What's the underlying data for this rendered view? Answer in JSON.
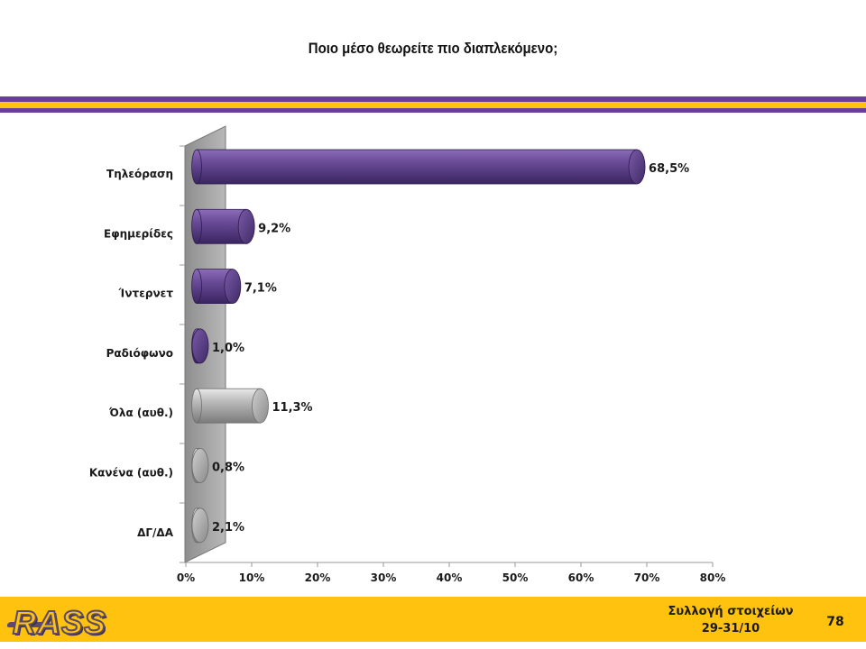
{
  "slide": {
    "title": "Ποιο μέσο θεωρείτε πιο διαπλεκόμενο;",
    "footer": {
      "logo_text": "RASS",
      "info_line1": "Συλλογή στοιχείων",
      "info_line2": "29-31/10",
      "page_number": "78"
    },
    "colors": {
      "purple_band": "#6b3d9a",
      "gold_band": "#ffc20e",
      "bar_purple": "#5b3f86",
      "bar_gray": "#a8a8a8"
    }
  },
  "chart_data": {
    "type": "bar",
    "orientation": "horizontal",
    "title": "Ποιο μέσο θεωρείτε πιο διαπλεκόμενο;",
    "categories": [
      "Τηλεόραση",
      "Εφημερίδες",
      "Ίντερνετ",
      "Ραδιόφωνο",
      "Όλα (αυθ.)",
      "Κανένα (αυθ.)",
      "ΔΓ/ΔΑ"
    ],
    "values": [
      68.5,
      9.2,
      7.1,
      1.0,
      11.3,
      0.8,
      2.1
    ],
    "value_labels": [
      "68,5%",
      "9,2%",
      "7,1%",
      "1,0%",
      "11,3%",
      "0,8%",
      "2,1%"
    ],
    "bar_colors": [
      "purple",
      "purple",
      "purple",
      "purple",
      "gray",
      "gray",
      "gray"
    ],
    "xlim": [
      0,
      80
    ],
    "x_ticks": [
      "0%",
      "10%",
      "20%",
      "30%",
      "40%",
      "50%",
      "60%",
      "70%",
      "80%"
    ],
    "grid": false,
    "legend": "none"
  }
}
